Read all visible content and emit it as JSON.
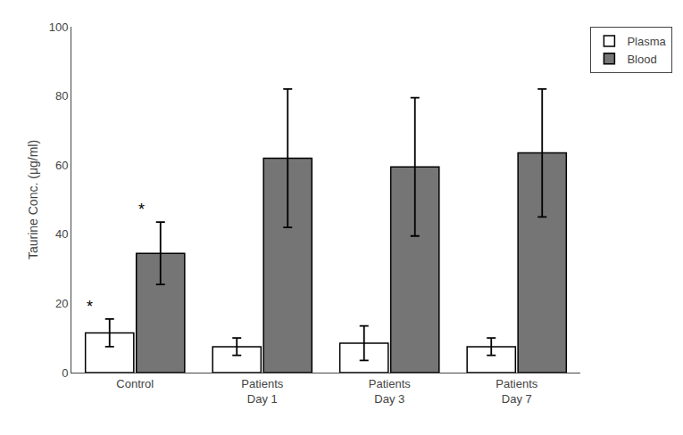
{
  "chart_data": {
    "type": "bar",
    "categories": [
      "Control",
      "Patients\nDay 1",
      "Patients\nDay 3",
      "Patients\nDay 7"
    ],
    "series": [
      {
        "name": "Plasma",
        "color": "#ffffff",
        "values": [
          11.5,
          7.5,
          8.5,
          7.5
        ],
        "errors": [
          4.0,
          2.5,
          5.0,
          2.5
        ]
      },
      {
        "name": "Blood",
        "color": "#757575",
        "values": [
          34.5,
          62.0,
          59.5,
          63.5
        ],
        "errors": [
          9.0,
          20.0,
          20.0,
          18.5
        ]
      }
    ],
    "ylabel": "Taurine Conc. (μg/ml)",
    "ylim": [
      0,
      100
    ],
    "yticks": [
      0,
      20,
      40,
      60,
      80,
      100
    ],
    "annotations": [
      {
        "text": "*",
        "series": "Plasma",
        "category": "Control"
      },
      {
        "text": "*",
        "series": "Blood",
        "category": "Control"
      }
    ],
    "grid": false,
    "legend": "upper right"
  }
}
